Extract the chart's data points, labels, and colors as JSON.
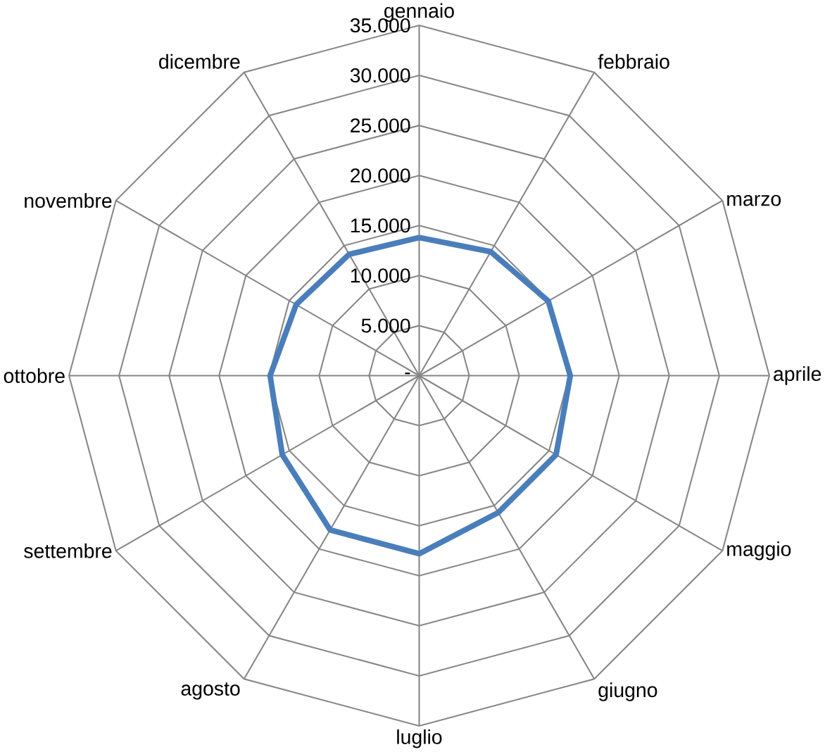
{
  "chart_data": {
    "type": "radar",
    "categories": [
      "gennaio",
      "febbraio",
      "marzo",
      "aprile",
      "maggio",
      "giugno",
      "luglio",
      "agosto",
      "settembre",
      "ottobre",
      "novembre",
      "dicembre"
    ],
    "series": [
      {
        "color": "#4a7ebb",
        "values": [
          13800,
          14300,
          14900,
          15100,
          15800,
          15800,
          17800,
          17800,
          15800,
          14900,
          14200,
          14000
        ]
      }
    ],
    "ylim": [
      0,
      35000
    ],
    "yticks": [
      {
        "value": 0,
        "label": "-"
      },
      {
        "value": 5000,
        "label": "5.000"
      },
      {
        "value": 10000,
        "label": "10.000"
      },
      {
        "value": 15000,
        "label": "15.000"
      },
      {
        "value": 20000,
        "label": "20.000"
      },
      {
        "value": 25000,
        "label": "25.000"
      },
      {
        "value": 30000,
        "label": "30.000"
      },
      {
        "value": 35000,
        "label": "35.000"
      }
    ],
    "grid": true
  }
}
